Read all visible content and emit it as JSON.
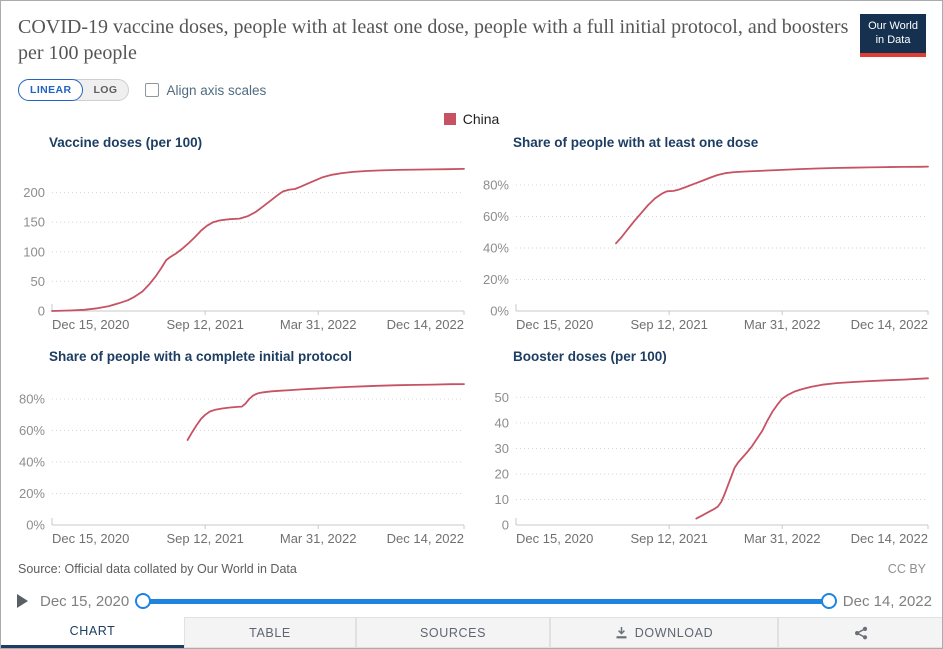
{
  "header": {
    "title": "COVID-19 vaccine doses, people with at least one dose, people with a full initial protocol, and boosters per 100 people",
    "logo_line1": "Our World",
    "logo_line2": "in Data"
  },
  "controls": {
    "linear": "LINEAR",
    "log": "LOG",
    "align_axis": "Align axis scales",
    "align_checked": false
  },
  "legend": {
    "entity": "China",
    "color": "#c65264"
  },
  "colors": {
    "line": "#c65264",
    "navy": "#1d3d63",
    "slider_blue": "#1f83e0",
    "toggle_blue": "#2364c3",
    "logo_navy": "#16314f",
    "logo_red": "#e23d33",
    "grid": "#d6d6d6",
    "axis": "#c9c9c9"
  },
  "chart_data": [
    {
      "type": "line",
      "title": "Vaccine doses (per 100)",
      "y_max": 250,
      "y_grid": true,
      "y_ticks": [
        {
          "v": 0,
          "label": "0"
        },
        {
          "v": 50,
          "label": "50"
        },
        {
          "v": 100,
          "label": "100"
        },
        {
          "v": 150,
          "label": "150"
        },
        {
          "v": 200,
          "label": "200"
        }
      ],
      "x_range": [
        "2020-12-15",
        "2022-12-14"
      ],
      "x_ticks": [
        {
          "date": "2020-12-15",
          "label": "Dec 15, 2020"
        },
        {
          "date": "2021-09-12",
          "label": "Sep 12, 2021"
        },
        {
          "date": "2022-03-31",
          "label": "Mar 31, 2022"
        },
        {
          "date": "2022-12-14",
          "label": "Dec 14, 2022"
        }
      ],
      "series": [
        {
          "name": "China",
          "color": "#c65264",
          "points": [
            [
              "2020-12-15",
              0
            ],
            [
              "2021-01-15",
              0.8
            ],
            [
              "2021-02-10",
              2
            ],
            [
              "2021-03-05",
              4.5
            ],
            [
              "2021-03-25",
              8
            ],
            [
              "2021-04-12",
              13
            ],
            [
              "2021-04-28",
              18
            ],
            [
              "2021-05-10",
              24
            ],
            [
              "2021-05-24",
              33
            ],
            [
              "2021-06-05",
              45
            ],
            [
              "2021-06-16",
              58
            ],
            [
              "2021-06-26",
              72
            ],
            [
              "2021-07-05",
              86
            ],
            [
              "2021-07-12",
              91
            ],
            [
              "2021-07-22",
              97
            ],
            [
              "2021-08-01",
              104
            ],
            [
              "2021-08-12",
              113
            ],
            [
              "2021-08-24",
              124
            ],
            [
              "2021-09-05",
              136
            ],
            [
              "2021-09-15",
              144
            ],
            [
              "2021-09-26",
              150
            ],
            [
              "2021-10-08",
              153
            ],
            [
              "2021-10-25",
              155
            ],
            [
              "2021-11-12",
              156
            ],
            [
              "2021-11-26",
              160
            ],
            [
              "2021-12-10",
              167
            ],
            [
              "2021-12-24",
              177
            ],
            [
              "2022-01-08",
              188
            ],
            [
              "2022-01-20",
              197
            ],
            [
              "2022-01-28",
              202
            ],
            [
              "2022-02-08",
              205
            ],
            [
              "2022-02-18",
              206
            ],
            [
              "2022-02-28",
              210
            ],
            [
              "2022-03-12",
              215
            ],
            [
              "2022-03-24",
              220
            ],
            [
              "2022-04-08",
              226
            ],
            [
              "2022-04-24",
              230
            ],
            [
              "2022-05-12",
              233
            ],
            [
              "2022-06-01",
              235
            ],
            [
              "2022-06-24",
              236.5
            ],
            [
              "2022-07-20",
              237.5
            ],
            [
              "2022-08-20",
              238.3
            ],
            [
              "2022-09-20",
              238.8
            ],
            [
              "2022-10-20",
              239.2
            ],
            [
              "2022-11-15",
              239.6
            ],
            [
              "2022-12-14",
              240
            ]
          ]
        }
      ]
    },
    {
      "type": "line",
      "title": "Share of people with at least one dose",
      "y_max": 94,
      "y_grid": true,
      "y_ticks": [
        {
          "v": 0,
          "label": "0%"
        },
        {
          "v": 20,
          "label": "20%"
        },
        {
          "v": 40,
          "label": "40%"
        },
        {
          "v": 60,
          "label": "60%"
        },
        {
          "v": 80,
          "label": "80%"
        }
      ],
      "x_range": [
        "2020-12-15",
        "2022-12-14"
      ],
      "x_ticks": [
        {
          "date": "2020-12-15",
          "label": "Dec 15, 2020"
        },
        {
          "date": "2021-09-12",
          "label": "Sep 12, 2021"
        },
        {
          "date": "2022-03-31",
          "label": "Mar 31, 2022"
        },
        {
          "date": "2022-12-14",
          "label": "Dec 14, 2022"
        }
      ],
      "series": [
        {
          "name": "China",
          "color": "#c65264",
          "points": [
            [
              "2021-06-10",
              43
            ],
            [
              "2021-06-20",
              47
            ],
            [
              "2021-07-01",
              52
            ],
            [
              "2021-07-12",
              57
            ],
            [
              "2021-07-24",
              62
            ],
            [
              "2021-08-05",
              67
            ],
            [
              "2021-08-18",
              71.5
            ],
            [
              "2021-08-30",
              74.5
            ],
            [
              "2021-09-08",
              76
            ],
            [
              "2021-09-20",
              76.3
            ],
            [
              "2021-09-28",
              77
            ],
            [
              "2021-10-10",
              78.5
            ],
            [
              "2021-10-24",
              80.5
            ],
            [
              "2021-11-08",
              82.5
            ],
            [
              "2021-11-22",
              84.5
            ],
            [
              "2021-12-06",
              86.3
            ],
            [
              "2021-12-20",
              87.5
            ],
            [
              "2022-01-05",
              88.2
            ],
            [
              "2022-01-25",
              88.6
            ],
            [
              "2022-02-15",
              88.9
            ],
            [
              "2022-03-10",
              89.3
            ],
            [
              "2022-03-31",
              89.6
            ],
            [
              "2022-04-30",
              90.1
            ],
            [
              "2022-05-31",
              90.5
            ],
            [
              "2022-06-30",
              90.8
            ],
            [
              "2022-07-31",
              91
            ],
            [
              "2022-08-31",
              91.2
            ],
            [
              "2022-09-30",
              91.4
            ],
            [
              "2022-10-31",
              91.5
            ],
            [
              "2022-11-30",
              91.6
            ],
            [
              "2022-12-14",
              91.7
            ]
          ]
        }
      ]
    },
    {
      "type": "line",
      "title": "Share of people with a complete initial protocol",
      "y_max": 94,
      "y_grid": true,
      "y_ticks": [
        {
          "v": 0,
          "label": "0%"
        },
        {
          "v": 20,
          "label": "20%"
        },
        {
          "v": 40,
          "label": "40%"
        },
        {
          "v": 60,
          "label": "60%"
        },
        {
          "v": 80,
          "label": "80%"
        }
      ],
      "x_range": [
        "2020-12-15",
        "2022-12-14"
      ],
      "x_ticks": [
        {
          "date": "2020-12-15",
          "label": "Dec 15, 2020"
        },
        {
          "date": "2021-09-12",
          "label": "Sep 12, 2021"
        },
        {
          "date": "2022-03-31",
          "label": "Mar 31, 2022"
        },
        {
          "date": "2022-12-14",
          "label": "Dec 14, 2022"
        }
      ],
      "series": [
        {
          "name": "China",
          "color": "#c65264",
          "points": [
            [
              "2021-08-12",
              54
            ],
            [
              "2021-08-20",
              59
            ],
            [
              "2021-08-28",
              63.5
            ],
            [
              "2021-09-05",
              67.5
            ],
            [
              "2021-09-12",
              70
            ],
            [
              "2021-09-20",
              72
            ],
            [
              "2021-09-30",
              73.2
            ],
            [
              "2021-10-12",
              74
            ],
            [
              "2021-10-26",
              74.6
            ],
            [
              "2021-11-08",
              75
            ],
            [
              "2021-11-16",
              75.2
            ],
            [
              "2021-11-22",
              77
            ],
            [
              "2021-11-29",
              80
            ],
            [
              "2021-12-06",
              82.3
            ],
            [
              "2021-12-14",
              83.6
            ],
            [
              "2021-12-24",
              84.3
            ],
            [
              "2022-01-08",
              84.9
            ],
            [
              "2022-01-24",
              85.3
            ],
            [
              "2022-02-10",
              85.7
            ],
            [
              "2022-03-01",
              86.1
            ],
            [
              "2022-03-20",
              86.5
            ],
            [
              "2022-04-10",
              86.9
            ],
            [
              "2022-05-01",
              87.3
            ],
            [
              "2022-05-25",
              87.7
            ],
            [
              "2022-06-20",
              88.1
            ],
            [
              "2022-07-20",
              88.5
            ],
            [
              "2022-08-20",
              88.8
            ],
            [
              "2022-09-20",
              89
            ],
            [
              "2022-10-20",
              89.2
            ],
            [
              "2022-11-20",
              89.4
            ],
            [
              "2022-12-14",
              89.5
            ]
          ]
        }
      ]
    },
    {
      "type": "line",
      "title": "Booster doses (per 100)",
      "y_max": 58,
      "y_grid": true,
      "y_ticks": [
        {
          "v": 0,
          "label": "0"
        },
        {
          "v": 10,
          "label": "10"
        },
        {
          "v": 20,
          "label": "20"
        },
        {
          "v": 30,
          "label": "30"
        },
        {
          "v": 40,
          "label": "40"
        },
        {
          "v": 50,
          "label": "50"
        }
      ],
      "x_range": [
        "2020-12-15",
        "2022-12-14"
      ],
      "x_ticks": [
        {
          "date": "2020-12-15",
          "label": "Dec 15, 2020"
        },
        {
          "date": "2021-09-12",
          "label": "Sep 12, 2021"
        },
        {
          "date": "2022-03-31",
          "label": "Mar 31, 2022"
        },
        {
          "date": "2022-12-14",
          "label": "Dec 14, 2022"
        }
      ],
      "series": [
        {
          "name": "China",
          "color": "#c65264",
          "points": [
            [
              "2021-10-30",
              2.5
            ],
            [
              "2021-11-10",
              3.8
            ],
            [
              "2021-11-20",
              5
            ],
            [
              "2021-11-30",
              6.2
            ],
            [
              "2021-12-07",
              7.2
            ],
            [
              "2021-12-13",
              9
            ],
            [
              "2021-12-19",
              12
            ],
            [
              "2021-12-25",
              15.5
            ],
            [
              "2021-12-31",
              19
            ],
            [
              "2022-01-06",
              22.5
            ],
            [
              "2022-01-12",
              24.5
            ],
            [
              "2022-01-20",
              26.5
            ],
            [
              "2022-01-28",
              28.5
            ],
            [
              "2022-02-06",
              31
            ],
            [
              "2022-02-15",
              34
            ],
            [
              "2022-02-24",
              37
            ],
            [
              "2022-03-05",
              41
            ],
            [
              "2022-03-14",
              44.5
            ],
            [
              "2022-03-22",
              47
            ],
            [
              "2022-03-31",
              49.5
            ],
            [
              "2022-04-10",
              51
            ],
            [
              "2022-04-22",
              52.3
            ],
            [
              "2022-05-06",
              53.3
            ],
            [
              "2022-05-22",
              54.2
            ],
            [
              "2022-06-10",
              55
            ],
            [
              "2022-07-05",
              55.6
            ],
            [
              "2022-08-01",
              56
            ],
            [
              "2022-09-01",
              56.4
            ],
            [
              "2022-10-01",
              56.7
            ],
            [
              "2022-11-01",
              57
            ],
            [
              "2022-12-14",
              57.5
            ]
          ]
        }
      ]
    }
  ],
  "footer": {
    "source": "Source: Official data collated by Our World in Data",
    "license": "CC BY"
  },
  "timeline": {
    "start": "Dec 15, 2020",
    "end": "Dec 14, 2022"
  },
  "tabs": {
    "chart": "CHART",
    "table": "TABLE",
    "sources": "SOURCES",
    "download": "DOWNLOAD",
    "active": "CHART"
  }
}
